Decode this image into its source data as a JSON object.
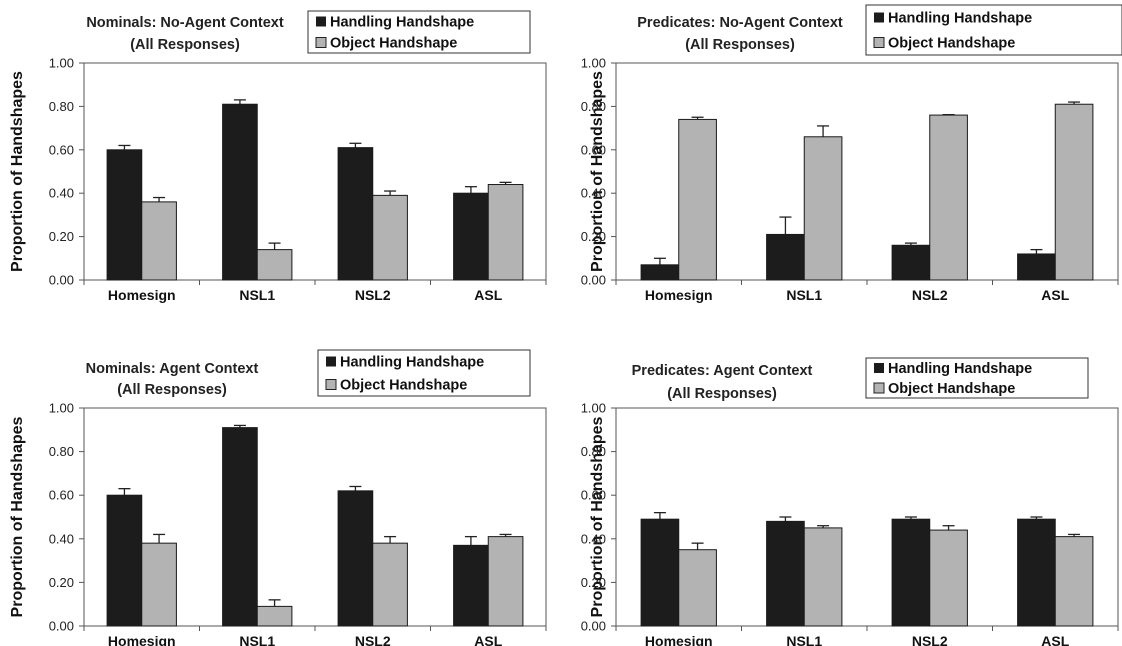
{
  "colors": {
    "handling": "#1c1c1c",
    "object": "#b3b3b3",
    "axis": "#555555"
  },
  "chart_data": [
    {
      "type": "bar",
      "title_line1": "Nominals: No-Agent Context",
      "title_line2": "(All Responses)",
      "ylabel": "Proportion of Handshapes",
      "ylim": [
        0,
        1
      ],
      "yticks": [
        "0.00",
        "0.20",
        "0.40",
        "0.60",
        "0.80",
        "1.00"
      ],
      "categories": [
        "Homesign",
        "NSL1",
        "NSL2",
        "ASL"
      ],
      "legend_position": "top-right",
      "series": [
        {
          "name": "Handling Handshape",
          "values": [
            0.6,
            0.81,
            0.61,
            0.4
          ],
          "errors": [
            0.02,
            0.02,
            0.02,
            0.03
          ]
        },
        {
          "name": "Object Handshape",
          "values": [
            0.36,
            0.14,
            0.39,
            0.44
          ],
          "errors": [
            0.02,
            0.03,
            0.02,
            0.01
          ]
        }
      ]
    },
    {
      "type": "bar",
      "title_line1": "Predicates: No-Agent Context",
      "title_line2": "(All Responses)",
      "ylabel": "Proportion of Handshapes",
      "ylim": [
        0,
        1
      ],
      "yticks": [
        "0.00",
        "0.20",
        "0.40",
        "0.60",
        "0.80",
        "1.00"
      ],
      "categories": [
        "Homesign",
        "NSL1",
        "NSL2",
        "ASL"
      ],
      "legend_position": "top-right",
      "series": [
        {
          "name": "Handling Handshape",
          "values": [
            0.07,
            0.21,
            0.16,
            0.12
          ],
          "errors": [
            0.03,
            0.08,
            0.01,
            0.02
          ]
        },
        {
          "name": "Object Handshape",
          "values": [
            0.74,
            0.66,
            0.76,
            0.81
          ],
          "errors": [
            0.01,
            0.05,
            0.002,
            0.01
          ]
        }
      ]
    },
    {
      "type": "bar",
      "title_line1": "Nominals: Agent Context",
      "title_line2": "(All Responses)",
      "ylabel": "Proportion of Handshapes",
      "ylim": [
        0,
        1
      ],
      "yticks": [
        "0.00",
        "0.20",
        "0.40",
        "0.60",
        "0.80",
        "1.00"
      ],
      "categories": [
        "Homesign",
        "NSL1",
        "NSL2",
        "ASL"
      ],
      "legend_position": "top-right",
      "series": [
        {
          "name": "Handling Handshape",
          "values": [
            0.6,
            0.91,
            0.62,
            0.37
          ],
          "errors": [
            0.03,
            0.01,
            0.02,
            0.04
          ]
        },
        {
          "name": "Object Handshape",
          "values": [
            0.38,
            0.09,
            0.38,
            0.41
          ],
          "errors": [
            0.04,
            0.03,
            0.03,
            0.01
          ]
        }
      ]
    },
    {
      "type": "bar",
      "title_line1": "Predicates: Agent Context",
      "title_line2": "(All Responses)",
      "ylabel": "Proportion of Handshapes",
      "ylim": [
        0,
        1
      ],
      "yticks": [
        "0.00",
        "0.20",
        "0.40",
        "0.60",
        "0.80",
        "1.00"
      ],
      "categories": [
        "Homesign",
        "NSL1",
        "NSL2",
        "ASL"
      ],
      "legend_position": "top-right",
      "series": [
        {
          "name": "Handling Handshape",
          "values": [
            0.49,
            0.48,
            0.49,
            0.49
          ],
          "errors": [
            0.03,
            0.02,
            0.01,
            0.01
          ]
        },
        {
          "name": "Object Handshape",
          "values": [
            0.35,
            0.45,
            0.44,
            0.41
          ],
          "errors": [
            0.03,
            0.01,
            0.02,
            0.01
          ]
        }
      ]
    }
  ]
}
